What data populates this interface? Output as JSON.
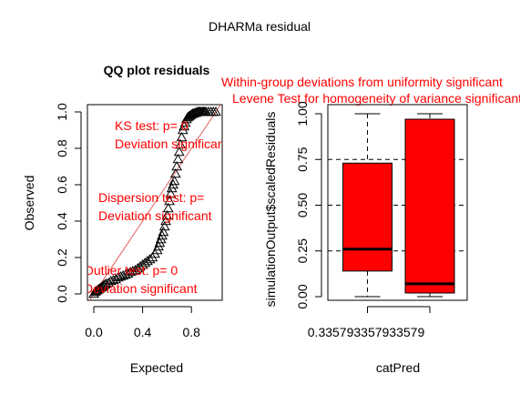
{
  "page": {
    "title": "DHARMa residual"
  },
  "colors": {
    "red": "#ff0000",
    "line": "#e06060",
    "black": "#000000"
  },
  "chart_data": [
    {
      "type": "scatter",
      "title": "QQ plot residuals",
      "xlabel": "Expected",
      "ylabel": "Observed",
      "xlim": [
        0,
        1
      ],
      "ylim": [
        0,
        1
      ],
      "x_ticks": [
        "0.0",
        "0.4",
        "0.8"
      ],
      "y_ticks": [
        "0.0",
        "0.2",
        "0.4",
        "0.6",
        "0.8",
        "1.0"
      ],
      "marker": "open-triangle",
      "reference_line": "y = x",
      "x": [
        0.0,
        0.01,
        0.02,
        0.03,
        0.04,
        0.05,
        0.06,
        0.07,
        0.08,
        0.09,
        0.1,
        0.12,
        0.14,
        0.16,
        0.18,
        0.2,
        0.22,
        0.24,
        0.26,
        0.28,
        0.3,
        0.32,
        0.34,
        0.36,
        0.38,
        0.4,
        0.42,
        0.44,
        0.46,
        0.48,
        0.5,
        0.52,
        0.53,
        0.54,
        0.55,
        0.56,
        0.57,
        0.58,
        0.59,
        0.6,
        0.61,
        0.62,
        0.63,
        0.64,
        0.65,
        0.66,
        0.67,
        0.68,
        0.69,
        0.7,
        0.71,
        0.72,
        0.73,
        0.74,
        0.75,
        0.76,
        0.77,
        0.78,
        0.79,
        0.8,
        0.81,
        0.82,
        0.83,
        0.84,
        0.85,
        0.86,
        0.87,
        0.88,
        0.89,
        0.9,
        0.91,
        0.92,
        0.94,
        0.96,
        0.98,
        1.0
      ],
      "y": [
        0.0,
        0.01,
        0.015,
        0.02,
        0.025,
        0.03,
        0.035,
        0.04,
        0.045,
        0.05,
        0.055,
        0.06,
        0.07,
        0.075,
        0.08,
        0.09,
        0.095,
        0.1,
        0.105,
        0.11,
        0.12,
        0.125,
        0.13,
        0.14,
        0.15,
        0.16,
        0.17,
        0.18,
        0.19,
        0.2,
        0.22,
        0.24,
        0.26,
        0.28,
        0.3,
        0.32,
        0.34,
        0.37,
        0.4,
        0.43,
        0.47,
        0.51,
        0.55,
        0.58,
        0.6,
        0.62,
        0.66,
        0.7,
        0.74,
        0.78,
        0.82,
        0.86,
        0.9,
        0.92,
        0.94,
        0.96,
        0.97,
        0.975,
        0.98,
        0.985,
        0.99,
        0.99,
        0.995,
        0.995,
        1.0,
        1.0,
        1.0,
        1.0,
        1.0,
        1.0,
        1.0,
        1.0,
        1.0,
        1.0,
        1.0,
        1.0
      ],
      "annotations": [
        {
          "lines": [
            "KS test: p= 0",
            "Deviation  significant"
          ]
        },
        {
          "lines": [
            "Dispersion test: p=",
            "Deviation  significant"
          ]
        },
        {
          "lines": [
            "Outlier test: p= 0",
            "Deviation  significant"
          ]
        }
      ]
    },
    {
      "type": "box",
      "title_lines": [
        "Within-group deviations from uniformity significant",
        "Levene Test for homogeneity of variance significant"
      ],
      "xlabel": "catPred",
      "ylabel": "simulationOutput$scaledResiduals",
      "ylim": [
        0,
        1
      ],
      "y_ticks": [
        "0.00",
        "0.25",
        "0.50",
        "0.75",
        "1.00"
      ],
      "categories": [
        "0.335793357933579",
        ""
      ],
      "boxes": [
        {
          "min": 0.0,
          "q1": 0.14,
          "median": 0.26,
          "q3": 0.73,
          "max": 1.0
        },
        {
          "min": 0.0,
          "q1": 0.02,
          "median": 0.07,
          "q3": 0.97,
          "max": 1.0
        }
      ],
      "reference_lines": [
        0.25,
        0.5,
        0.75
      ]
    }
  ]
}
